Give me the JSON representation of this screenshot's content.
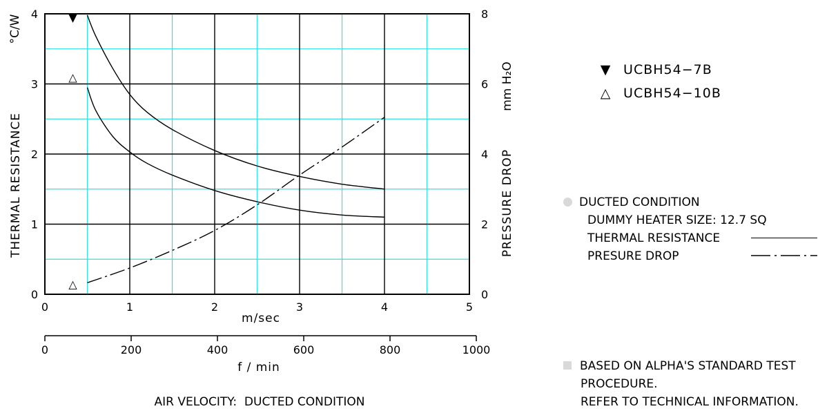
{
  "chart_data": {
    "type": "line",
    "x_unit": "m/sec",
    "x_secondary_unit": "f / min",
    "caption": "AIR VELOCITY:  DUCTED CONDITION",
    "y_left_label": "THERMAL  RESISTANCE",
    "y_left_unit": "°C/W",
    "y_right_label": "PRESSURE  DROP",
    "y_right_unit": "mm H₂O",
    "x_range": [
      0,
      5
    ],
    "x_ticks": [
      "0",
      "1",
      "2",
      "3",
      "4",
      "5"
    ],
    "x_secondary_range": [
      0,
      1000
    ],
    "x_secondary_ticks": [
      "0",
      "200",
      "400",
      "600",
      "800",
      "1000"
    ],
    "y_left_range": [
      0,
      4
    ],
    "y_left_ticks": [
      "0",
      "1",
      "2",
      "3",
      "4"
    ],
    "y_right_range": [
      0,
      8
    ],
    "y_right_ticks": [
      "0",
      "2",
      "4",
      "6",
      "8"
    ],
    "grid": true,
    "series": [
      {
        "name": "UCBH54-7B",
        "axis": "left",
        "style": "solid",
        "x": [
          0.5,
          0.6,
          0.8,
          1.0,
          1.2,
          1.5,
          2.0,
          2.5,
          3.0,
          3.5,
          4.0
        ],
        "y": [
          3.98,
          3.68,
          3.22,
          2.85,
          2.6,
          2.35,
          2.05,
          1.83,
          1.68,
          1.57,
          1.5
        ]
      },
      {
        "name": "UCBH54-10B",
        "axis": "left",
        "style": "solid",
        "x": [
          0.5,
          0.6,
          0.8,
          1.0,
          1.2,
          1.5,
          2.0,
          2.5,
          3.0,
          3.5,
          4.0
        ],
        "y": [
          2.95,
          2.62,
          2.25,
          2.03,
          1.87,
          1.7,
          1.48,
          1.32,
          1.2,
          1.13,
          1.1
        ]
      },
      {
        "name": "PRESURE DROP",
        "axis": "right",
        "style": "dash-dot",
        "x": [
          0.5,
          1.0,
          1.5,
          2.0,
          2.5,
          3.0,
          3.5,
          4.0
        ],
        "y": [
          0.33,
          0.75,
          1.25,
          1.82,
          2.55,
          3.4,
          4.2,
          5.05
        ]
      }
    ],
    "markers": [
      {
        "symbol": "▼",
        "series": "UCBH54-7B",
        "x": 0.33,
        "y": 3.95
      },
      {
        "symbol": "△",
        "series": "UCBH54-10B",
        "x": 0.33,
        "y": 3.1
      },
      {
        "symbol": "△",
        "series": "UCBH54-10B",
        "x": 0.33,
        "y": 0.15
      }
    ]
  },
  "legend": {
    "items": [
      {
        "symbol": "▼",
        "label": "UCBH54−7B"
      },
      {
        "symbol": "△",
        "label": "UCBH54−10B"
      }
    ]
  },
  "condition": {
    "title": "DUCTED CONDITION",
    "heater": "DUMMY HEATER SIZE: 12.7 SQ",
    "thermal_label": "THERMAL RESISTANCE",
    "pressure_label": "PRESURE DROP"
  },
  "note": {
    "line1": "BASED ON ALPHA'S STANDARD TEST",
    "line2": "PROCEDURE.",
    "line3": "REFER TO TECHNICAL INFORMATION."
  },
  "colors": {
    "grid_major": "#000000",
    "grid_minor": "#33e0e0",
    "marker_fill": "#d9d9d9"
  }
}
